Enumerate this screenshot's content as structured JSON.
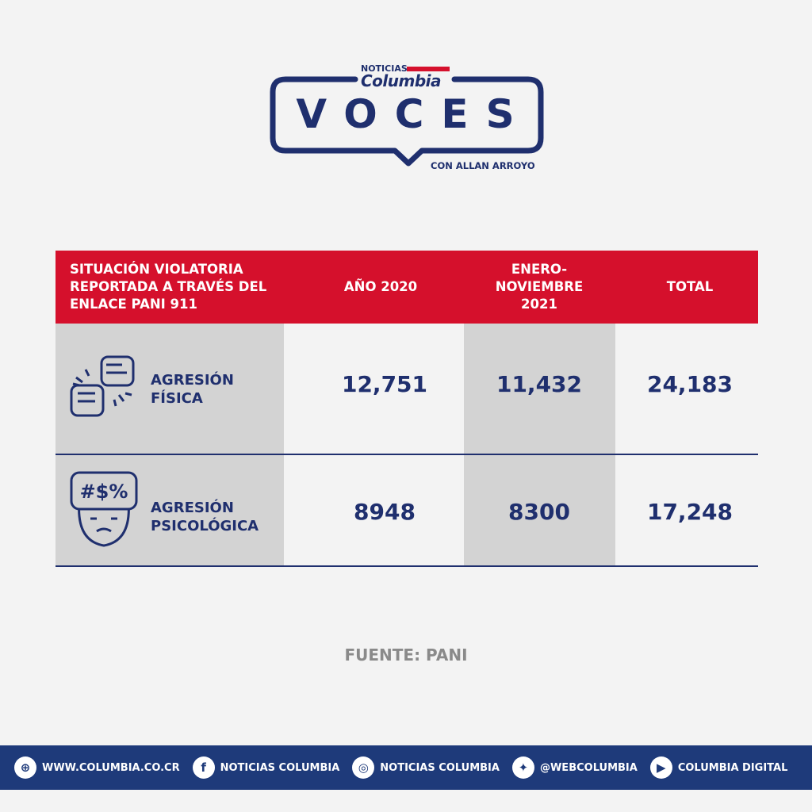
{
  "logo": {
    "noticias": "NOTICIAS",
    "columbia": "Columbia",
    "title": "VOCES",
    "subtitle": "CON ALLAN ARROYO"
  },
  "colors": {
    "navy": "#1f2f6e",
    "red": "#d5102c",
    "grey": "#d3d3d3",
    "footer": "#1e3a7a"
  },
  "table": {
    "headers": [
      "SITUACIÓN VIOLATORIA REPORTADA A TRAVÉS DEL ENLACE PANI 911",
      "AÑO 2020",
      "ENERO-NOVIEMBRE 2021",
      "TOTAL"
    ],
    "rows": [
      {
        "icon": "fist-bump-icon",
        "label_1": "AGRESIÓN",
        "label_2": "FÍSICA",
        "y2020": "12,751",
        "y2021": "11,432",
        "total": "24,183"
      },
      {
        "icon": "angry-face-icon",
        "label_1": "AGRESIÓN",
        "label_2": "PSICOLÓGICA",
        "y2020": "8948",
        "y2021": "8300",
        "total": "17,248"
      }
    ]
  },
  "source": "FUENTE: PANI",
  "footer": [
    {
      "icon": "globe-icon",
      "label": "WWW.COLUMBIA.CO.CR"
    },
    {
      "icon": "facebook-icon",
      "label": "NOTICIAS COLUMBIA"
    },
    {
      "icon": "instagram-icon",
      "label": "NOTICIAS COLUMBIA"
    },
    {
      "icon": "twitter-icon",
      "label": "@WEBCOLUMBIA"
    },
    {
      "icon": "youtube-icon",
      "label": "COLUMBIA DIGITAL"
    }
  ]
}
